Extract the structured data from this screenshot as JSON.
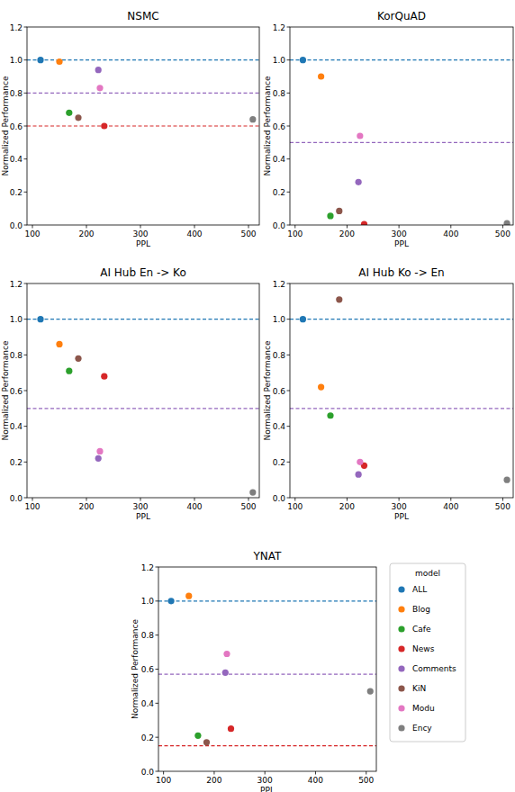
{
  "chart_data": [
    {
      "type": "scatter",
      "title": "NSMC",
      "x_label": "PPL",
      "y_label": "Normalized Performance",
      "xlim": [
        90,
        520
      ],
      "xticks": [
        100,
        200,
        300,
        400,
        500
      ],
      "ylim": [
        0,
        1.2
      ],
      "yticks": [
        {
          "value": 0,
          "label": "0.0"
        },
        {
          "value": 0.2,
          "label": "0.2"
        },
        {
          "value": 0.4,
          "label": "0.4"
        },
        {
          "value": 0.6,
          "label": "0.6"
        },
        {
          "value": 0.8,
          "label": "0.8"
        },
        {
          "value": 1.0,
          "label": "1.0"
        },
        {
          "value": 1.2,
          "label": "1.2"
        }
      ],
      "grid": false,
      "reference_lines": [
        {
          "value": 1.0,
          "color": "#1f77b4"
        },
        {
          "value": 0.8,
          "color": "#9467bd"
        },
        {
          "value": 0.6,
          "color": "#d62728"
        }
      ],
      "series": [
        {
          "name": "ALL",
          "color": "#1f77b4",
          "x": [
            115
          ],
          "values": [
            1.0
          ]
        },
        {
          "name": "Blog",
          "color": "#ff7f0e",
          "x": [
            150
          ],
          "values": [
            0.99
          ]
        },
        {
          "name": "Cafe",
          "color": "#2ca02c",
          "x": [
            168
          ],
          "values": [
            0.68
          ]
        },
        {
          "name": "News",
          "color": "#d62728",
          "x": [
            233
          ],
          "values": [
            0.6
          ]
        },
        {
          "name": "Comments",
          "color": "#9467bd",
          "x": [
            222
          ],
          "values": [
            0.94
          ]
        },
        {
          "name": "KiN",
          "color": "#8c564b",
          "x": [
            185
          ],
          "values": [
            0.65
          ]
        },
        {
          "name": "Modu",
          "color": "#e377c2",
          "x": [
            225
          ],
          "values": [
            0.83
          ]
        },
        {
          "name": "Ency",
          "color": "#7f7f7f",
          "x": [
            508
          ],
          "values": [
            0.64
          ]
        }
      ]
    },
    {
      "type": "scatter",
      "title": "KorQuAD",
      "x_label": "PPL",
      "y_label": "Normalized Performance",
      "xlim": [
        90,
        520
      ],
      "xticks": [
        100,
        200,
        300,
        400,
        500
      ],
      "ylim": [
        0,
        1.2
      ],
      "yticks": [
        {
          "value": 0,
          "label": "0.0"
        },
        {
          "value": 0.2,
          "label": "0.2"
        },
        {
          "value": 0.4,
          "label": "0.4"
        },
        {
          "value": 0.6,
          "label": "0.6"
        },
        {
          "value": 0.8,
          "label": "0.8"
        },
        {
          "value": 1.0,
          "label": "1.0"
        },
        {
          "value": 1.2,
          "label": "1.2"
        }
      ],
      "grid": false,
      "reference_lines": [
        {
          "value": 1.0,
          "color": "#1f77b4"
        },
        {
          "value": 0.5,
          "color": "#9467bd"
        }
      ],
      "series": [
        {
          "name": "ALL",
          "color": "#1f77b4",
          "x": [
            115
          ],
          "values": [
            1.0
          ]
        },
        {
          "name": "Blog",
          "color": "#ff7f0e",
          "x": [
            150
          ],
          "values": [
            0.9
          ]
        },
        {
          "name": "Cafe",
          "color": "#2ca02c",
          "x": [
            168
          ],
          "values": [
            0.055
          ]
        },
        {
          "name": "News",
          "color": "#d62728",
          "x": [
            233
          ],
          "values": [
            0.005
          ]
        },
        {
          "name": "Comments",
          "color": "#9467bd",
          "x": [
            222
          ],
          "values": [
            0.26
          ]
        },
        {
          "name": "KiN",
          "color": "#8c564b",
          "x": [
            185
          ],
          "values": [
            0.085
          ]
        },
        {
          "name": "Modu",
          "color": "#e377c2",
          "x": [
            225
          ],
          "values": [
            0.54
          ]
        },
        {
          "name": "Ency",
          "color": "#7f7f7f",
          "x": [
            508
          ],
          "values": [
            0.01
          ]
        }
      ]
    },
    {
      "type": "scatter",
      "title": "AI Hub En -> Ko",
      "x_label": "PPL",
      "y_label": "Normalized Performance",
      "xlim": [
        90,
        520
      ],
      "xticks": [
        100,
        200,
        300,
        400,
        500
      ],
      "ylim": [
        0,
        1.2
      ],
      "yticks": [
        {
          "value": 0,
          "label": "0.0"
        },
        {
          "value": 0.2,
          "label": "0.2"
        },
        {
          "value": 0.4,
          "label": "0.4"
        },
        {
          "value": 0.6,
          "label": "0.6"
        },
        {
          "value": 0.8,
          "label": "0.8"
        },
        {
          "value": 1.0,
          "label": "1.0"
        },
        {
          "value": 1.2,
          "label": "1.2"
        }
      ],
      "grid": false,
      "reference_lines": [
        {
          "value": 1.0,
          "color": "#1f77b4"
        },
        {
          "value": 0.5,
          "color": "#9467bd"
        }
      ],
      "series": [
        {
          "name": "ALL",
          "color": "#1f77b4",
          "x": [
            115
          ],
          "values": [
            1.0
          ]
        },
        {
          "name": "Blog",
          "color": "#ff7f0e",
          "x": [
            150
          ],
          "values": [
            0.86
          ]
        },
        {
          "name": "Cafe",
          "color": "#2ca02c",
          "x": [
            168
          ],
          "values": [
            0.71
          ]
        },
        {
          "name": "News",
          "color": "#d62728",
          "x": [
            233
          ],
          "values": [
            0.68
          ]
        },
        {
          "name": "Comments",
          "color": "#9467bd",
          "x": [
            222
          ],
          "values": [
            0.22
          ]
        },
        {
          "name": "KiN",
          "color": "#8c564b",
          "x": [
            185
          ],
          "values": [
            0.78
          ]
        },
        {
          "name": "Modu",
          "color": "#e377c2",
          "x": [
            225
          ],
          "values": [
            0.26
          ]
        },
        {
          "name": "Ency",
          "color": "#7f7f7f",
          "x": [
            508
          ],
          "values": [
            0.03
          ]
        }
      ]
    },
    {
      "type": "scatter",
      "title": "AI Hub Ko -> En",
      "x_label": "PPL",
      "y_label": "Normalized Performance",
      "xlim": [
        90,
        520
      ],
      "xticks": [
        100,
        200,
        300,
        400,
        500
      ],
      "ylim": [
        0,
        1.2
      ],
      "yticks": [
        {
          "value": 0,
          "label": "0.0"
        },
        {
          "value": 0.2,
          "label": "0.2"
        },
        {
          "value": 0.4,
          "label": "0.4"
        },
        {
          "value": 0.6,
          "label": "0.6"
        },
        {
          "value": 0.8,
          "label": "0.8"
        },
        {
          "value": 1.0,
          "label": "1.0"
        },
        {
          "value": 1.2,
          "label": "1.2"
        }
      ],
      "grid": false,
      "reference_lines": [
        {
          "value": 1.0,
          "color": "#1f77b4"
        },
        {
          "value": 0.5,
          "color": "#9467bd"
        }
      ],
      "series": [
        {
          "name": "ALL",
          "color": "#1f77b4",
          "x": [
            115
          ],
          "values": [
            1.0
          ]
        },
        {
          "name": "Blog",
          "color": "#ff7f0e",
          "x": [
            150
          ],
          "values": [
            0.62
          ]
        },
        {
          "name": "Cafe",
          "color": "#2ca02c",
          "x": [
            168
          ],
          "values": [
            0.46
          ]
        },
        {
          "name": "News",
          "color": "#d62728",
          "x": [
            233
          ],
          "values": [
            0.18
          ]
        },
        {
          "name": "Comments",
          "color": "#9467bd",
          "x": [
            222
          ],
          "values": [
            0.13
          ]
        },
        {
          "name": "KiN",
          "color": "#8c564b",
          "x": [
            185
          ],
          "values": [
            1.11
          ]
        },
        {
          "name": "Modu",
          "color": "#e377c2",
          "x": [
            225
          ],
          "values": [
            0.2
          ]
        },
        {
          "name": "Ency",
          "color": "#7f7f7f",
          "x": [
            508
          ],
          "values": [
            0.1
          ]
        }
      ]
    },
    {
      "type": "scatter",
      "title": "YNAT",
      "x_label": "PPL",
      "y_label": "Normalized Performance",
      "xlim": [
        90,
        520
      ],
      "xticks": [
        100,
        200,
        300,
        400,
        500
      ],
      "ylim": [
        0,
        1.2
      ],
      "yticks": [
        {
          "value": 0,
          "label": "0.0"
        },
        {
          "value": 0.2,
          "label": "0.2"
        },
        {
          "value": 0.4,
          "label": "0.4"
        },
        {
          "value": 0.6,
          "label": "0.6"
        },
        {
          "value": 0.8,
          "label": "0.8"
        },
        {
          "value": 1.0,
          "label": "1.0"
        },
        {
          "value": 1.2,
          "label": "1.2"
        }
      ],
      "grid": false,
      "legend": "outside right",
      "legend_title": "model",
      "reference_lines": [
        {
          "value": 1.0,
          "color": "#1f77b4"
        },
        {
          "value": 0.57,
          "color": "#9467bd"
        },
        {
          "value": 0.15,
          "color": "#d62728"
        }
      ],
      "series": [
        {
          "name": "ALL",
          "color": "#1f77b4",
          "x": [
            115
          ],
          "values": [
            1.0
          ]
        },
        {
          "name": "Blog",
          "color": "#ff7f0e",
          "x": [
            150
          ],
          "values": [
            1.03
          ]
        },
        {
          "name": "Cafe",
          "color": "#2ca02c",
          "x": [
            168
          ],
          "values": [
            0.21
          ]
        },
        {
          "name": "News",
          "color": "#d62728",
          "x": [
            233
          ],
          "values": [
            0.25
          ]
        },
        {
          "name": "Comments",
          "color": "#9467bd",
          "x": [
            222
          ],
          "values": [
            0.58
          ]
        },
        {
          "name": "KiN",
          "color": "#8c564b",
          "x": [
            185
          ],
          "values": [
            0.17
          ]
        },
        {
          "name": "Modu",
          "color": "#e377c2",
          "x": [
            225
          ],
          "values": [
            0.69
          ]
        },
        {
          "name": "Ency",
          "color": "#7f7f7f",
          "x": [
            508
          ],
          "values": [
            0.47
          ]
        }
      ]
    }
  ]
}
